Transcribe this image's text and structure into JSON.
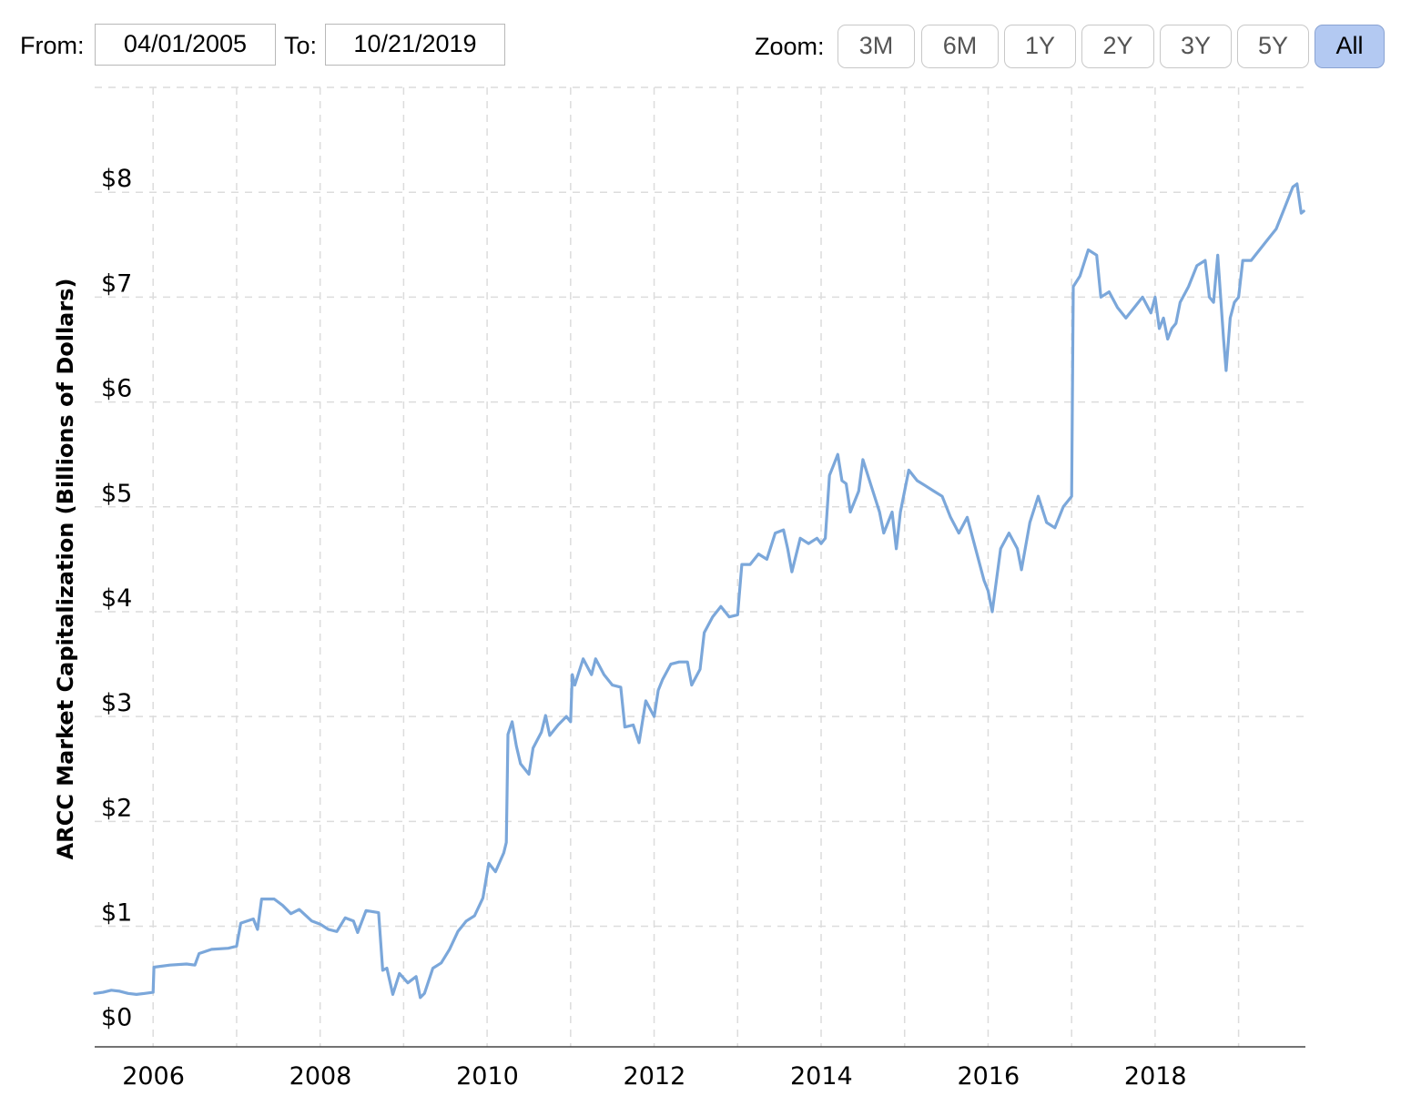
{
  "toolbar": {
    "from_label": "From:",
    "from_value": "04/01/2005",
    "to_label": "To:",
    "to_value": "10/21/2019",
    "zoom_label": "Zoom:",
    "zoom_buttons": [
      "3M",
      "6M",
      "1Y",
      "2Y",
      "3Y",
      "5Y",
      "All"
    ],
    "zoom_active": "All"
  },
  "chart_data": {
    "type": "line",
    "title": "",
    "xlabel": "",
    "ylabel": "ARCC Market Capitalization (Billions of Dollars)",
    "y_tick_labels": [
      "$0",
      "$1",
      "$2",
      "$3",
      "$4",
      "$5",
      "$6",
      "$7",
      "$8"
    ],
    "x_tick_labels": [
      "2006",
      "2008",
      "2010",
      "2012",
      "2014",
      "2016",
      "2018"
    ],
    "ylim": [
      -0.15,
      9.0
    ],
    "xlim": [
      2005.3,
      2019.8
    ],
    "grid": true,
    "line_color": "#7ba7da",
    "series": [
      {
        "values": [
          [
            2005.3,
            0.36
          ],
          [
            2005.4,
            0.37
          ],
          [
            2005.5,
            0.39
          ],
          [
            2005.6,
            0.38
          ],
          [
            2005.7,
            0.36
          ],
          [
            2005.8,
            0.35
          ],
          [
            2005.9,
            0.36
          ],
          [
            2006.0,
            0.37
          ],
          [
            2006.01,
            0.61
          ],
          [
            2006.2,
            0.63
          ],
          [
            2006.4,
            0.64
          ],
          [
            2006.5,
            0.63
          ],
          [
            2006.55,
            0.74
          ],
          [
            2006.7,
            0.78
          ],
          [
            2006.9,
            0.79
          ],
          [
            2007.0,
            0.81
          ],
          [
            2007.05,
            1.03
          ],
          [
            2007.2,
            1.07
          ],
          [
            2007.25,
            0.97
          ],
          [
            2007.3,
            1.26
          ],
          [
            2007.45,
            1.26
          ],
          [
            2007.55,
            1.2
          ],
          [
            2007.65,
            1.12
          ],
          [
            2007.75,
            1.16
          ],
          [
            2007.9,
            1.05
          ],
          [
            2008.0,
            1.02
          ],
          [
            2008.1,
            0.97
          ],
          [
            2008.2,
            0.95
          ],
          [
            2008.3,
            1.08
          ],
          [
            2008.4,
            1.05
          ],
          [
            2008.45,
            0.94
          ],
          [
            2008.55,
            1.15
          ],
          [
            2008.7,
            1.13
          ],
          [
            2008.75,
            0.58
          ],
          [
            2008.8,
            0.6
          ],
          [
            2008.87,
            0.35
          ],
          [
            2008.95,
            0.55
          ],
          [
            2009.05,
            0.46
          ],
          [
            2009.15,
            0.52
          ],
          [
            2009.2,
            0.32
          ],
          [
            2009.25,
            0.36
          ],
          [
            2009.35,
            0.6
          ],
          [
            2009.45,
            0.65
          ],
          [
            2009.55,
            0.78
          ],
          [
            2009.65,
            0.95
          ],
          [
            2009.75,
            1.05
          ],
          [
            2009.85,
            1.1
          ],
          [
            2009.95,
            1.27
          ],
          [
            2010.02,
            1.6
          ],
          [
            2010.1,
            1.52
          ],
          [
            2010.2,
            1.7
          ],
          [
            2010.23,
            1.8
          ],
          [
            2010.25,
            2.83
          ],
          [
            2010.3,
            2.95
          ],
          [
            2010.35,
            2.72
          ],
          [
            2010.4,
            2.55
          ],
          [
            2010.5,
            2.45
          ],
          [
            2010.55,
            2.7
          ],
          [
            2010.65,
            2.85
          ],
          [
            2010.7,
            3.01
          ],
          [
            2010.75,
            2.82
          ],
          [
            2010.85,
            2.92
          ],
          [
            2010.95,
            3.0
          ],
          [
            2011.0,
            2.95
          ],
          [
            2011.02,
            3.4
          ],
          [
            2011.05,
            3.3
          ],
          [
            2011.15,
            3.55
          ],
          [
            2011.25,
            3.4
          ],
          [
            2011.3,
            3.55
          ],
          [
            2011.4,
            3.4
          ],
          [
            2011.5,
            3.3
          ],
          [
            2011.6,
            3.28
          ],
          [
            2011.65,
            2.9
          ],
          [
            2011.75,
            2.92
          ],
          [
            2011.82,
            2.75
          ],
          [
            2011.9,
            3.15
          ],
          [
            2012.0,
            3.0
          ],
          [
            2012.05,
            3.25
          ],
          [
            2012.1,
            3.35
          ],
          [
            2012.2,
            3.5
          ],
          [
            2012.3,
            3.52
          ],
          [
            2012.4,
            3.52
          ],
          [
            2012.45,
            3.3
          ],
          [
            2012.55,
            3.45
          ],
          [
            2012.6,
            3.8
          ],
          [
            2012.7,
            3.95
          ],
          [
            2012.8,
            4.05
          ],
          [
            2012.9,
            3.95
          ],
          [
            2013.0,
            3.97
          ],
          [
            2013.05,
            4.45
          ],
          [
            2013.15,
            4.45
          ],
          [
            2013.25,
            4.55
          ],
          [
            2013.35,
            4.5
          ],
          [
            2013.45,
            4.75
          ],
          [
            2013.55,
            4.78
          ],
          [
            2013.6,
            4.6
          ],
          [
            2013.65,
            4.38
          ],
          [
            2013.75,
            4.7
          ],
          [
            2013.85,
            4.65
          ],
          [
            2013.95,
            4.7
          ],
          [
            2014.0,
            4.65
          ],
          [
            2014.05,
            4.7
          ],
          [
            2014.1,
            5.3
          ],
          [
            2014.15,
            5.4
          ],
          [
            2014.2,
            5.5
          ],
          [
            2014.25,
            5.25
          ],
          [
            2014.3,
            5.22
          ],
          [
            2014.35,
            4.95
          ],
          [
            2014.45,
            5.15
          ],
          [
            2014.5,
            5.45
          ],
          [
            2014.6,
            5.2
          ],
          [
            2014.7,
            4.95
          ],
          [
            2014.75,
            4.75
          ],
          [
            2014.85,
            4.95
          ],
          [
            2014.9,
            4.6
          ],
          [
            2014.95,
            4.95
          ],
          [
            2015.0,
            5.15
          ],
          [
            2015.05,
            5.35
          ],
          [
            2015.15,
            5.25
          ],
          [
            2015.25,
            5.2
          ],
          [
            2015.35,
            5.15
          ],
          [
            2015.45,
            5.1
          ],
          [
            2015.55,
            4.9
          ],
          [
            2015.65,
            4.75
          ],
          [
            2015.75,
            4.9
          ],
          [
            2015.85,
            4.6
          ],
          [
            2015.95,
            4.3
          ],
          [
            2016.0,
            4.2
          ],
          [
            2016.05,
            4.0
          ],
          [
            2016.15,
            4.6
          ],
          [
            2016.25,
            4.75
          ],
          [
            2016.35,
            4.6
          ],
          [
            2016.4,
            4.4
          ],
          [
            2016.5,
            4.85
          ],
          [
            2016.6,
            5.1
          ],
          [
            2016.7,
            4.85
          ],
          [
            2016.8,
            4.8
          ],
          [
            2016.9,
            5.0
          ],
          [
            2017.0,
            5.1
          ],
          [
            2017.02,
            7.1
          ],
          [
            2017.1,
            7.2
          ],
          [
            2017.2,
            7.45
          ],
          [
            2017.3,
            7.4
          ],
          [
            2017.35,
            7.0
          ],
          [
            2017.45,
            7.05
          ],
          [
            2017.55,
            6.9
          ],
          [
            2017.65,
            6.8
          ],
          [
            2017.75,
            6.9
          ],
          [
            2017.85,
            7.0
          ],
          [
            2017.95,
            6.85
          ],
          [
            2018.0,
            7.0
          ],
          [
            2018.05,
            6.7
          ],
          [
            2018.1,
            6.8
          ],
          [
            2018.15,
            6.6
          ],
          [
            2018.2,
            6.7
          ],
          [
            2018.25,
            6.75
          ],
          [
            2018.3,
            6.95
          ],
          [
            2018.4,
            7.1
          ],
          [
            2018.5,
            7.3
          ],
          [
            2018.6,
            7.35
          ],
          [
            2018.65,
            7.0
          ],
          [
            2018.7,
            6.95
          ],
          [
            2018.75,
            7.4
          ],
          [
            2018.82,
            6.6
          ],
          [
            2018.85,
            6.3
          ],
          [
            2018.9,
            6.8
          ],
          [
            2018.95,
            6.95
          ],
          [
            2019.0,
            7.0
          ],
          [
            2019.05,
            7.35
          ],
          [
            2019.15,
            7.35
          ],
          [
            2019.25,
            7.45
          ],
          [
            2019.35,
            7.55
          ],
          [
            2019.45,
            7.65
          ],
          [
            2019.55,
            7.85
          ],
          [
            2019.65,
            8.05
          ],
          [
            2019.7,
            8.08
          ],
          [
            2019.75,
            7.8
          ],
          [
            2019.78,
            7.82
          ]
        ]
      }
    ]
  }
}
